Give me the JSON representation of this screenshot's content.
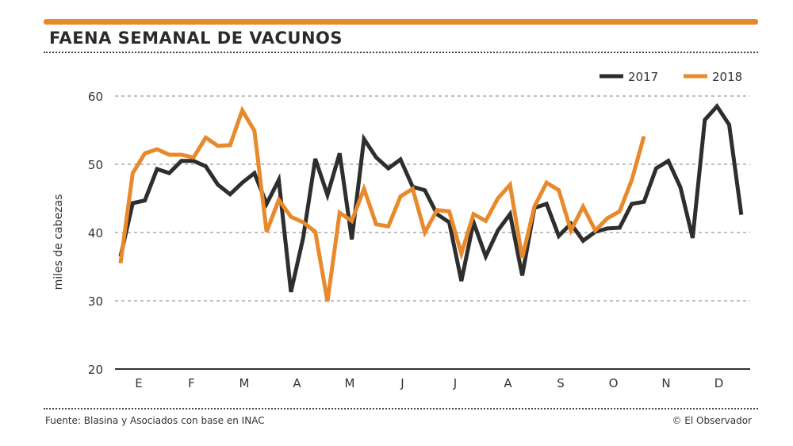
{
  "header": {
    "title": "FAENA SEMANAL DE VACUNOS"
  },
  "footer": {
    "source": "Fuente: Blasina y Asociados con base en INAC",
    "credit": "© El Observador"
  },
  "colors": {
    "accent": "#e8892b",
    "series_2017": "#2e2e2e",
    "series_2018": "#e8892b"
  },
  "chart_data": {
    "type": "line",
    "title": "FAENA SEMANAL DE VACUNOS",
    "ylabel": "miles de cabezas",
    "xlabel": "",
    "ylim": [
      20,
      60
    ],
    "yticks": [
      20,
      30,
      40,
      50,
      60
    ],
    "month_ticks": [
      "E",
      "F",
      "M",
      "A",
      "M",
      "J",
      "J",
      "A",
      "S",
      "O",
      "N",
      "D"
    ],
    "grid": true,
    "legend": "top-right",
    "series": [
      {
        "name": "2017",
        "color": "#2e2e2e",
        "values": [
          36.5,
          44.3,
          44.7,
          49.3,
          48.7,
          50.5,
          50.5,
          49.7,
          47.0,
          45.6,
          47.3,
          48.7,
          44.2,
          47.7,
          31.3,
          39.2,
          50.8,
          45.5,
          51.6,
          39.0,
          53.7,
          51.0,
          49.4,
          50.7,
          46.7,
          46.2,
          42.7,
          41.5,
          32.9,
          41.5,
          36.5,
          40.3,
          42.7,
          33.7,
          43.6,
          44.2,
          39.5,
          41.3,
          38.8,
          40.1,
          40.6,
          40.7,
          44.2,
          44.5,
          49.4,
          50.5,
          46.6,
          39.2,
          56.5,
          58.5,
          55.8,
          42.6
        ]
      },
      {
        "name": "2018",
        "color": "#e8892b",
        "values": [
          35.5,
          48.7,
          51.6,
          52.2,
          51.4,
          51.4,
          51.0,
          53.9,
          52.7,
          52.8,
          57.9,
          54.9,
          40.1,
          44.8,
          42.3,
          41.5,
          40.1,
          29.9,
          42.9,
          41.7,
          46.4,
          41.2,
          40.9,
          45.3,
          46.4,
          40.0,
          43.3,
          43.1,
          36.9,
          42.7,
          41.7,
          45.0,
          47.0,
          36.3,
          43.8,
          47.3,
          46.2,
          40.3,
          43.8,
          40.3,
          42.1,
          43.1,
          47.7,
          54.1
        ]
      }
    ]
  }
}
